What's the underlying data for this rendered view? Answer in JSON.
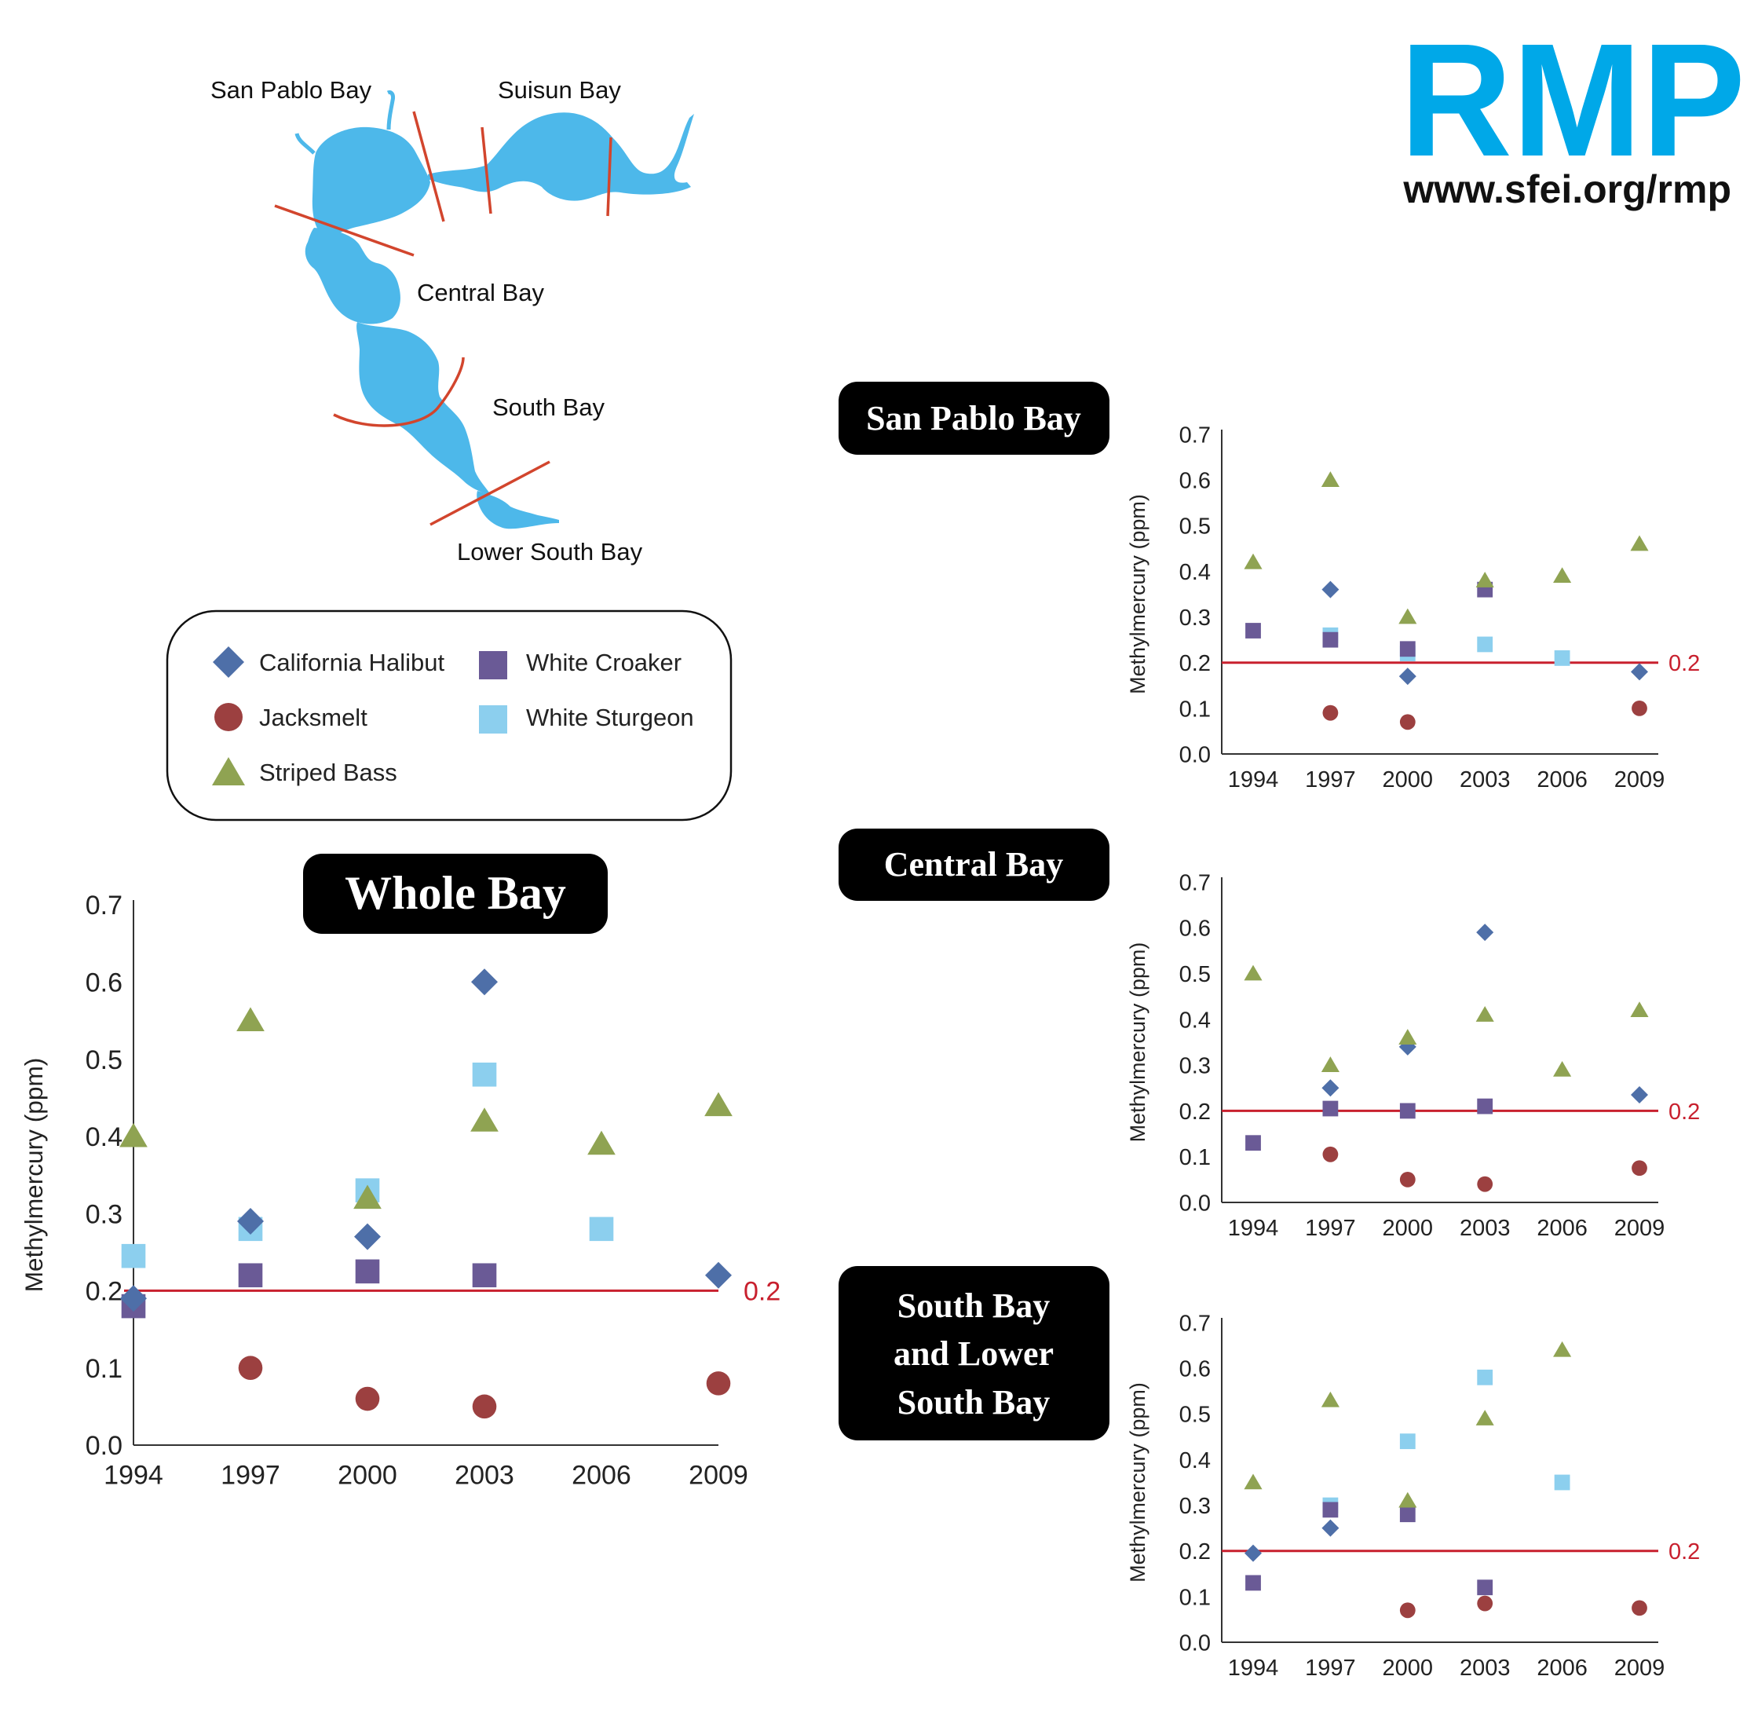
{
  "logo": {
    "text": "RMP",
    "url": "www.sfei.org/rmp",
    "color": "#00a8e8"
  },
  "map": {
    "water_color": "#4db8ea",
    "boundary_color": "#d2452d",
    "labels": [
      "San Pablo Bay",
      "Suisun Bay",
      "Central Bay",
      "South Bay",
      "Lower South Bay"
    ]
  },
  "legend": {
    "entries": [
      {
        "name": "California Halibut",
        "shape": "diamond",
        "color": "#4e6fa8"
      },
      {
        "name": "White Croaker",
        "shape": "square",
        "color": "#6a5a96"
      },
      {
        "name": "Jacksmelt",
        "shape": "circle",
        "color": "#9c4040"
      },
      {
        "name": "White Sturgeon",
        "shape": "square",
        "color": "#8ccfee"
      },
      {
        "name": "Striped Bass",
        "shape": "triangle",
        "color": "#8fa352"
      }
    ]
  },
  "chart_data": [
    {
      "id": "whole",
      "type": "scatter",
      "title": "Whole Bay",
      "ylabel": "Methylmercury (ppm)",
      "ylim": [
        0,
        0.7
      ],
      "yticks": [
        "0.0",
        "0.1",
        "0.2",
        "0.3",
        "0.4",
        "0.5",
        "0.6",
        "0.7"
      ],
      "x": [
        "1994",
        "1997",
        "2000",
        "2003",
        "2006",
        "2009"
      ],
      "threshold": {
        "value": 0.2,
        "label": "0.2",
        "color": "#c8202e"
      },
      "series": [
        {
          "name": "California Halibut",
          "values": [
            0.19,
            0.29,
            0.27,
            0.6,
            null,
            0.22
          ]
        },
        {
          "name": "White Croaker",
          "values": [
            0.18,
            0.22,
            0.225,
            0.22,
            null,
            null
          ]
        },
        {
          "name": "Jacksmelt",
          "values": [
            null,
            0.1,
            0.06,
            0.05,
            null,
            0.08
          ]
        },
        {
          "name": "White Sturgeon",
          "values": [
            0.245,
            0.28,
            0.33,
            0.48,
            0.28,
            null
          ]
        },
        {
          "name": "Striped Bass",
          "values": [
            0.4,
            0.55,
            0.32,
            0.42,
            0.39,
            0.44
          ]
        }
      ]
    },
    {
      "id": "sanpablo",
      "type": "scatter",
      "title": "San Pablo Bay",
      "ylabel": "Methylmercury (ppm)",
      "ylim": [
        0,
        0.7
      ],
      "yticks": [
        "0.0",
        "0.1",
        "0.2",
        "0.3",
        "0.4",
        "0.5",
        "0.6",
        "0.7"
      ],
      "x": [
        "1994",
        "1997",
        "2000",
        "2003",
        "2006",
        "2009"
      ],
      "threshold": {
        "value": 0.2,
        "label": "0.2",
        "color": "#c8202e"
      },
      "series": [
        {
          "name": "California Halibut",
          "values": [
            null,
            0.36,
            0.17,
            null,
            null,
            0.18
          ]
        },
        {
          "name": "White Croaker",
          "values": [
            0.27,
            0.25,
            0.23,
            0.36,
            null,
            null
          ]
        },
        {
          "name": "Jacksmelt",
          "values": [
            null,
            0.09,
            0.07,
            null,
            null,
            0.1
          ]
        },
        {
          "name": "White Sturgeon",
          "values": [
            null,
            0.26,
            0.22,
            0.24,
            0.21,
            null
          ]
        },
        {
          "name": "Striped Bass",
          "values": [
            0.42,
            0.6,
            0.3,
            0.38,
            0.39,
            0.46
          ]
        }
      ]
    },
    {
      "id": "central",
      "type": "scatter",
      "title": "Central Bay",
      "ylabel": "Methylmercury (ppm)",
      "ylim": [
        0,
        0.7
      ],
      "yticks": [
        "0.0",
        "0.1",
        "0.2",
        "0.3",
        "0.4",
        "0.5",
        "0.6",
        "0.7"
      ],
      "x": [
        "1994",
        "1997",
        "2000",
        "2003",
        "2006",
        "2009"
      ],
      "threshold": {
        "value": 0.2,
        "label": "0.2",
        "color": "#c8202e"
      },
      "series": [
        {
          "name": "California Halibut",
          "values": [
            null,
            0.25,
            0.34,
            0.59,
            null,
            0.235
          ]
        },
        {
          "name": "White Croaker",
          "values": [
            0.13,
            0.205,
            0.2,
            0.21,
            null,
            null
          ]
        },
        {
          "name": "Jacksmelt",
          "values": [
            null,
            0.105,
            0.05,
            0.04,
            null,
            0.075
          ]
        },
        {
          "name": "White Sturgeon",
          "values": [
            null,
            null,
            null,
            null,
            null,
            null
          ]
        },
        {
          "name": "Striped Bass",
          "values": [
            0.5,
            0.3,
            0.36,
            0.41,
            0.29,
            0.42
          ]
        }
      ]
    },
    {
      "id": "south",
      "type": "scatter",
      "title": "South Bay and Lower South Bay",
      "title_lines": [
        "South Bay",
        "and Lower",
        "South Bay"
      ],
      "ylabel": "Methylmercury (ppm)",
      "ylim": [
        0,
        0.7
      ],
      "yticks": [
        "0.0",
        "0.1",
        "0.2",
        "0.3",
        "0.4",
        "0.5",
        "0.6",
        "0.7"
      ],
      "x": [
        "1994",
        "1997",
        "2000",
        "2003",
        "2006",
        "2009"
      ],
      "threshold": {
        "value": 0.2,
        "label": "0.2",
        "color": "#c8202e"
      },
      "series": [
        {
          "name": "California Halibut",
          "values": [
            0.195,
            0.25,
            null,
            null,
            null,
            null
          ]
        },
        {
          "name": "White Croaker",
          "values": [
            0.13,
            0.29,
            0.28,
            0.12,
            null,
            null
          ]
        },
        {
          "name": "Jacksmelt",
          "values": [
            null,
            null,
            0.07,
            0.085,
            null,
            0.075
          ]
        },
        {
          "name": "White Sturgeon",
          "values": [
            null,
            0.3,
            0.44,
            0.58,
            0.35,
            null
          ]
        },
        {
          "name": "Striped Bass",
          "values": [
            0.35,
            0.53,
            0.31,
            0.49,
            0.64,
            null
          ]
        }
      ]
    }
  ]
}
